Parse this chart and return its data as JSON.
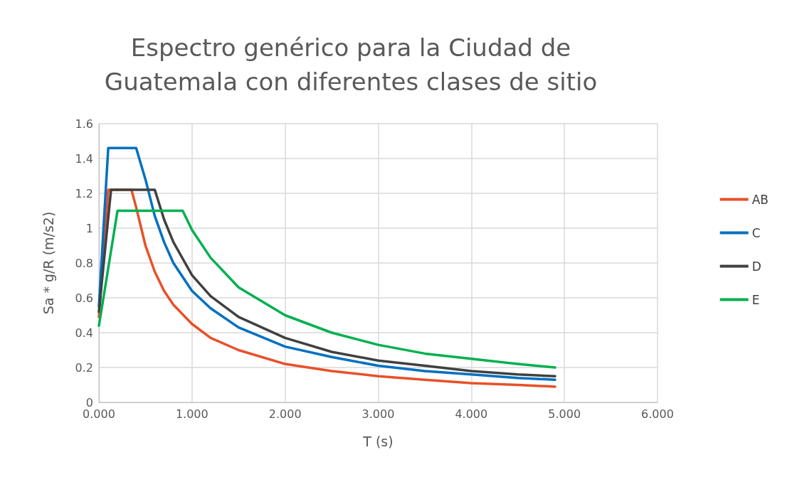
{
  "chart_data": {
    "type": "line",
    "title": "Espectro genérico para la Ciudad de\nGuatemala con diferentes clases de sitio",
    "xlabel": "T (s)",
    "ylabel": "Sa * g/R (m/s2)",
    "xlim": [
      0,
      6
    ],
    "xticks": [
      {
        "value": 0,
        "label": "0.000"
      },
      {
        "value": 1,
        "label": "1.000"
      },
      {
        "value": 2,
        "label": "2.000"
      },
      {
        "value": 3,
        "label": "3.000"
      },
      {
        "value": 4,
        "label": "4.000"
      },
      {
        "value": 5,
        "label": "5.000"
      },
      {
        "value": 6,
        "label": "6.000"
      }
    ],
    "ylim": [
      0,
      1.6
    ],
    "yticks": [
      0,
      0.2,
      0.4,
      0.6,
      0.8,
      1,
      1.2,
      1.4,
      1.6
    ],
    "grid": true,
    "legend": "right",
    "series": [
      {
        "name": "AB",
        "color": "#e8502a",
        "x": [
          0,
          0.1,
          0.35,
          0.4,
          0.5,
          0.6,
          0.7,
          0.8,
          1.0,
          1.2,
          1.5,
          2,
          2.5,
          3,
          3.5,
          4,
          4.5,
          4.9
        ],
        "values": [
          0.49,
          1.22,
          1.22,
          1.12,
          0.9,
          0.75,
          0.64,
          0.56,
          0.45,
          0.37,
          0.3,
          0.22,
          0.18,
          0.15,
          0.13,
          0.11,
          0.1,
          0.09
        ]
      },
      {
        "name": "C",
        "color": "#0070c0",
        "x": [
          0,
          0.1,
          0.4,
          0.5,
          0.6,
          0.7,
          0.8,
          1.0,
          1.2,
          1.5,
          2,
          2.5,
          3,
          3.5,
          4,
          4.5,
          4.9
        ],
        "values": [
          0.55,
          1.46,
          1.46,
          1.28,
          1.07,
          0.92,
          0.8,
          0.64,
          0.54,
          0.43,
          0.32,
          0.26,
          0.21,
          0.18,
          0.16,
          0.14,
          0.13
        ]
      },
      {
        "name": "D",
        "color": "#404040",
        "x": [
          0,
          0.13,
          0.6,
          0.7,
          0.8,
          1.0,
          1.2,
          1.5,
          2,
          2.5,
          3,
          3.5,
          4,
          4.5,
          4.9
        ],
        "values": [
          0.52,
          1.22,
          1.22,
          1.05,
          0.92,
          0.73,
          0.61,
          0.49,
          0.37,
          0.29,
          0.24,
          0.21,
          0.18,
          0.16,
          0.15
        ]
      },
      {
        "name": "E",
        "color": "#00b050",
        "x": [
          0,
          0.2,
          0.9,
          1.0,
          1.2,
          1.5,
          2,
          2.5,
          3,
          3.5,
          4,
          4.5,
          4.9
        ],
        "values": [
          0.44,
          1.1,
          1.1,
          0.99,
          0.83,
          0.66,
          0.5,
          0.4,
          0.33,
          0.28,
          0.25,
          0.22,
          0.2
        ]
      }
    ]
  }
}
